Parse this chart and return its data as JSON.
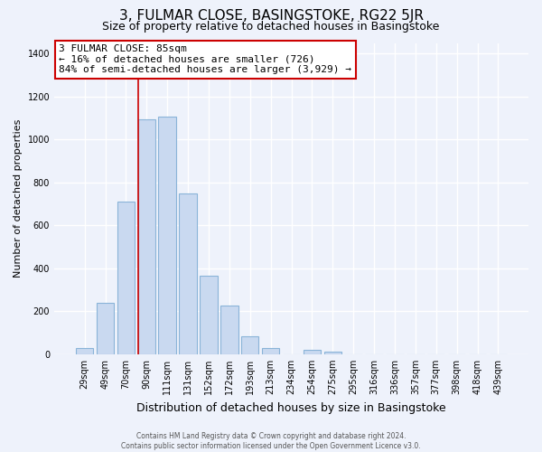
{
  "title": "3, FULMAR CLOSE, BASINGSTOKE, RG22 5JR",
  "subtitle": "Size of property relative to detached houses in Basingstoke",
  "xlabel": "Distribution of detached houses by size in Basingstoke",
  "ylabel": "Number of detached properties",
  "bar_labels": [
    "29sqm",
    "49sqm",
    "70sqm",
    "90sqm",
    "111sqm",
    "131sqm",
    "152sqm",
    "172sqm",
    "193sqm",
    "213sqm",
    "234sqm",
    "254sqm",
    "275sqm",
    "295sqm",
    "316sqm",
    "336sqm",
    "357sqm",
    "377sqm",
    "398sqm",
    "418sqm",
    "439sqm"
  ],
  "bar_values": [
    30,
    240,
    710,
    1095,
    1105,
    750,
    365,
    225,
    85,
    30,
    0,
    20,
    10,
    0,
    0,
    0,
    0,
    0,
    0,
    0,
    0
  ],
  "bar_color": "#c9d9f0",
  "bar_edge_color": "#8ab4d8",
  "ylim": [
    0,
    1450
  ],
  "yticks": [
    0,
    200,
    400,
    600,
    800,
    1000,
    1200,
    1400
  ],
  "annotation_title": "3 FULMAR CLOSE: 85sqm",
  "annotation_line1": "← 16% of detached houses are smaller (726)",
  "annotation_line2": "84% of semi-detached houses are larger (3,929) →",
  "line_color": "#cc0000",
  "footer_line1": "Contains HM Land Registry data © Crown copyright and database right 2024.",
  "footer_line2": "Contains public sector information licensed under the Open Government Licence v3.0.",
  "bg_color": "#eef2fb",
  "title_fontsize": 11,
  "subtitle_fontsize": 9,
  "ylabel_fontsize": 8,
  "xlabel_fontsize": 9,
  "tick_fontsize": 7,
  "annot_fontsize": 8,
  "footer_fontsize": 5.5
}
